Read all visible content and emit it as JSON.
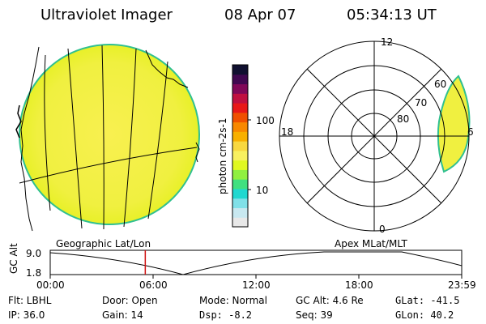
{
  "header": {
    "instrument": "Ultraviolet Imager",
    "date": "08 Apr 07",
    "time": "05:34:13 UT"
  },
  "left_panel": {
    "label": "Geographic Lat/Lon"
  },
  "right_panel": {
    "label": "Apex MLat/MLT",
    "mlt_labels": {
      "top": "12",
      "left": "18",
      "right": "6",
      "bottom": "0"
    },
    "lat_labels": [
      "60",
      "70",
      "80"
    ]
  },
  "colorbar": {
    "unit_label": "photon cm-2s-1",
    "tick_100": "100",
    "tick_10": "10",
    "colors": [
      "#e8e8e8",
      "#c8e8f0",
      "#80e0e8",
      "#20d8d0",
      "#40e080",
      "#90f040",
      "#e0f820",
      "#f8f060",
      "#f8d840",
      "#f8b000",
      "#f88800",
      "#f05000",
      "#e81818",
      "#c01040",
      "#800858",
      "#400850",
      "#101030"
    ]
  },
  "altitude_strip": {
    "axis_label": "GC Alt",
    "y_top": "9.0",
    "y_bottom": "1.8",
    "x_ticks": [
      "00:00",
      "06:00",
      "12:00",
      "18:00",
      "23:59"
    ],
    "current_time_fraction": 0.231
  },
  "status": {
    "flt": "Flt: LBHL",
    "ip": "IP: 36.0",
    "door": "Door: Open",
    "gain": "Gain: 14",
    "mode": "Mode: Normal",
    "dsp": "Dsp:    -8.2",
    "gc_alt": "GC Alt: 4.6 Re",
    "seq": "Seq: 39",
    "glat": "GLat:  -41.5",
    "glon": "GLon:  40.2"
  },
  "colors": {
    "disk_fill": "#f0f040",
    "disk_edge": "#30c090",
    "marker": "#d01010"
  }
}
